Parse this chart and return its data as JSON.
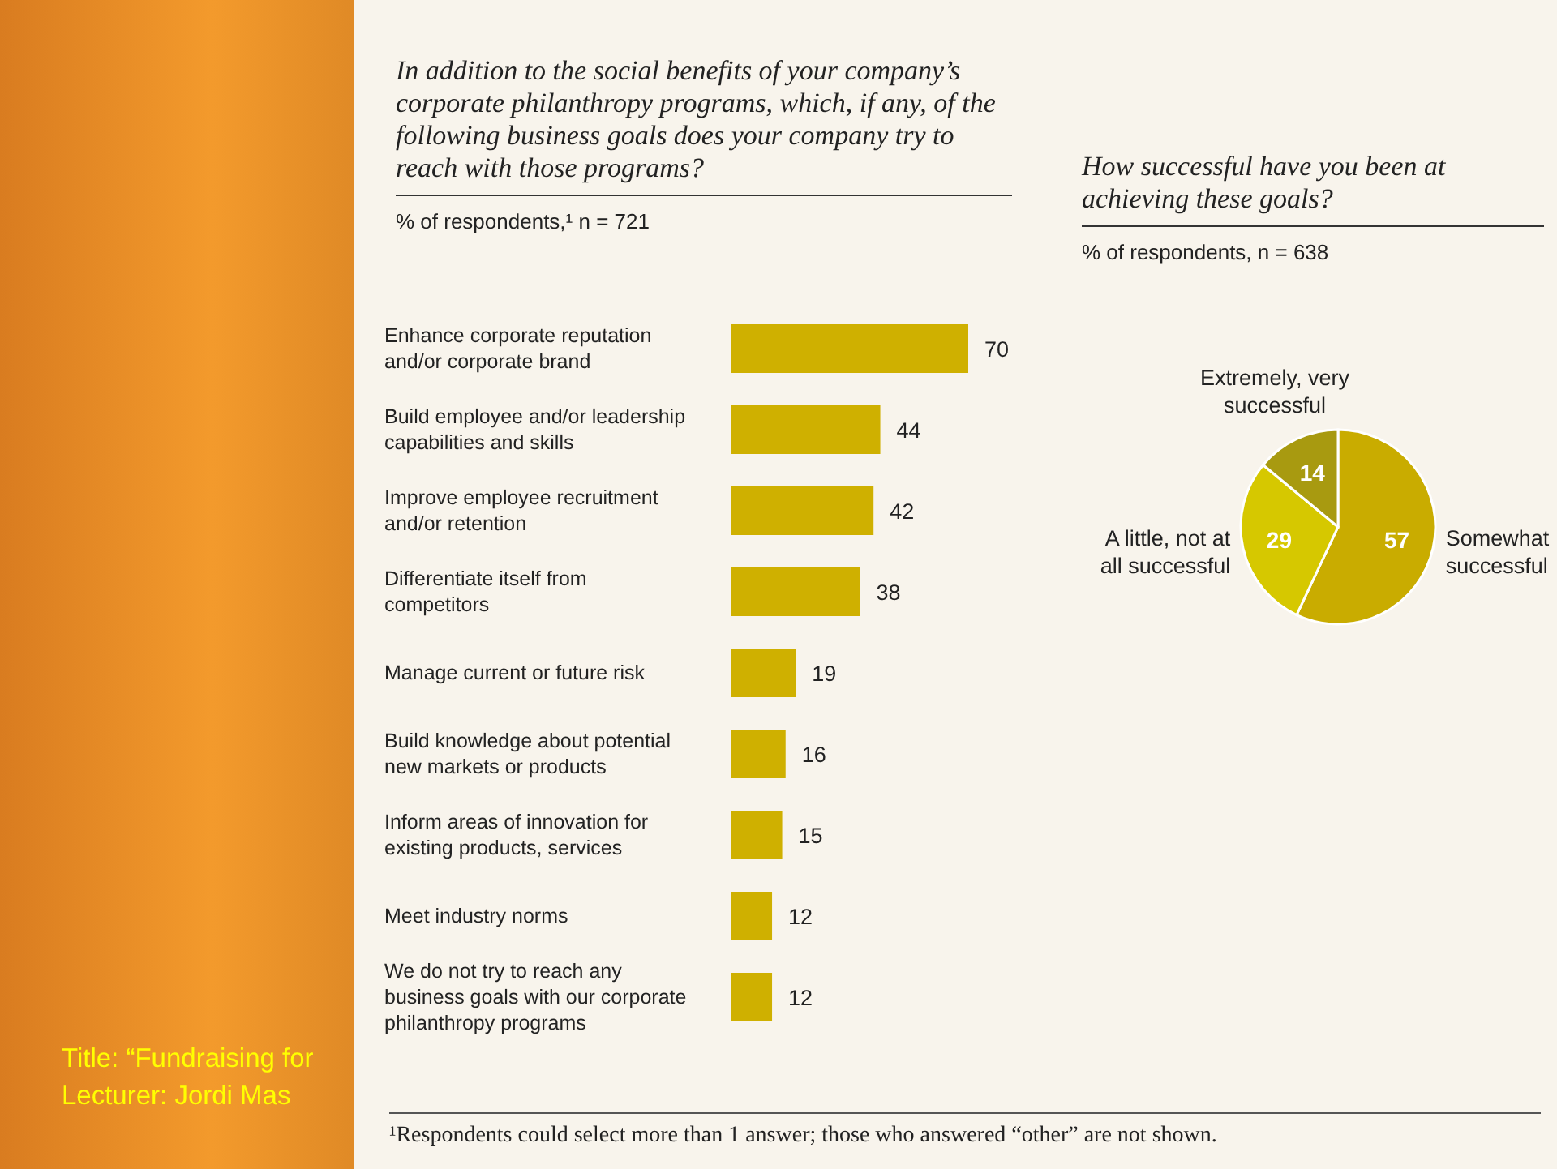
{
  "chart_data": [
    {
      "type": "bar",
      "orientation": "horizontal",
      "title": "In addition to the social benefits of your company’s corporate philanthropy programs, which, if any, of the following business goals does your company try to reach with those programs?",
      "subtitle": "% of respondents,¹ n = 721",
      "categories": [
        "Enhance corporate reputation and/or corporate brand",
        "Build employee and/or leadership capabilities and skills",
        "Improve employee recruitment and/or retention",
        "Differentiate itself from competitors",
        "Manage current or future risk",
        "Build knowledge about potential new markets or products",
        "Inform areas of innovation for existing products, services",
        "Meet industry norms",
        "We do not try to reach any business goals with our corporate philanthropy programs"
      ],
      "values": [
        70,
        44,
        42,
        38,
        19,
        16,
        15,
        12,
        12
      ],
      "color": "#cfb000",
      "data_labels": true,
      "annotations": [
        "¹Respondents could select more than 1 answer; those who answered “other” are not shown.",
        "Title: “Fundraising for",
        "Lecturer: Jordi Mas"
      ]
    },
    {
      "type": "pie",
      "title": "How successful have you been at achieving these goals?",
      "subtitle": "% of respondents, n = 638",
      "categories": [
        "Somewhat successful",
        "A little, not at all successful",
        "Extremely, very successful"
      ],
      "values": [
        57,
        29,
        14
      ],
      "colors": [
        "#c9ac00",
        "#d6c800",
        "#a89a10"
      ],
      "data_labels": true
    }
  ]
}
